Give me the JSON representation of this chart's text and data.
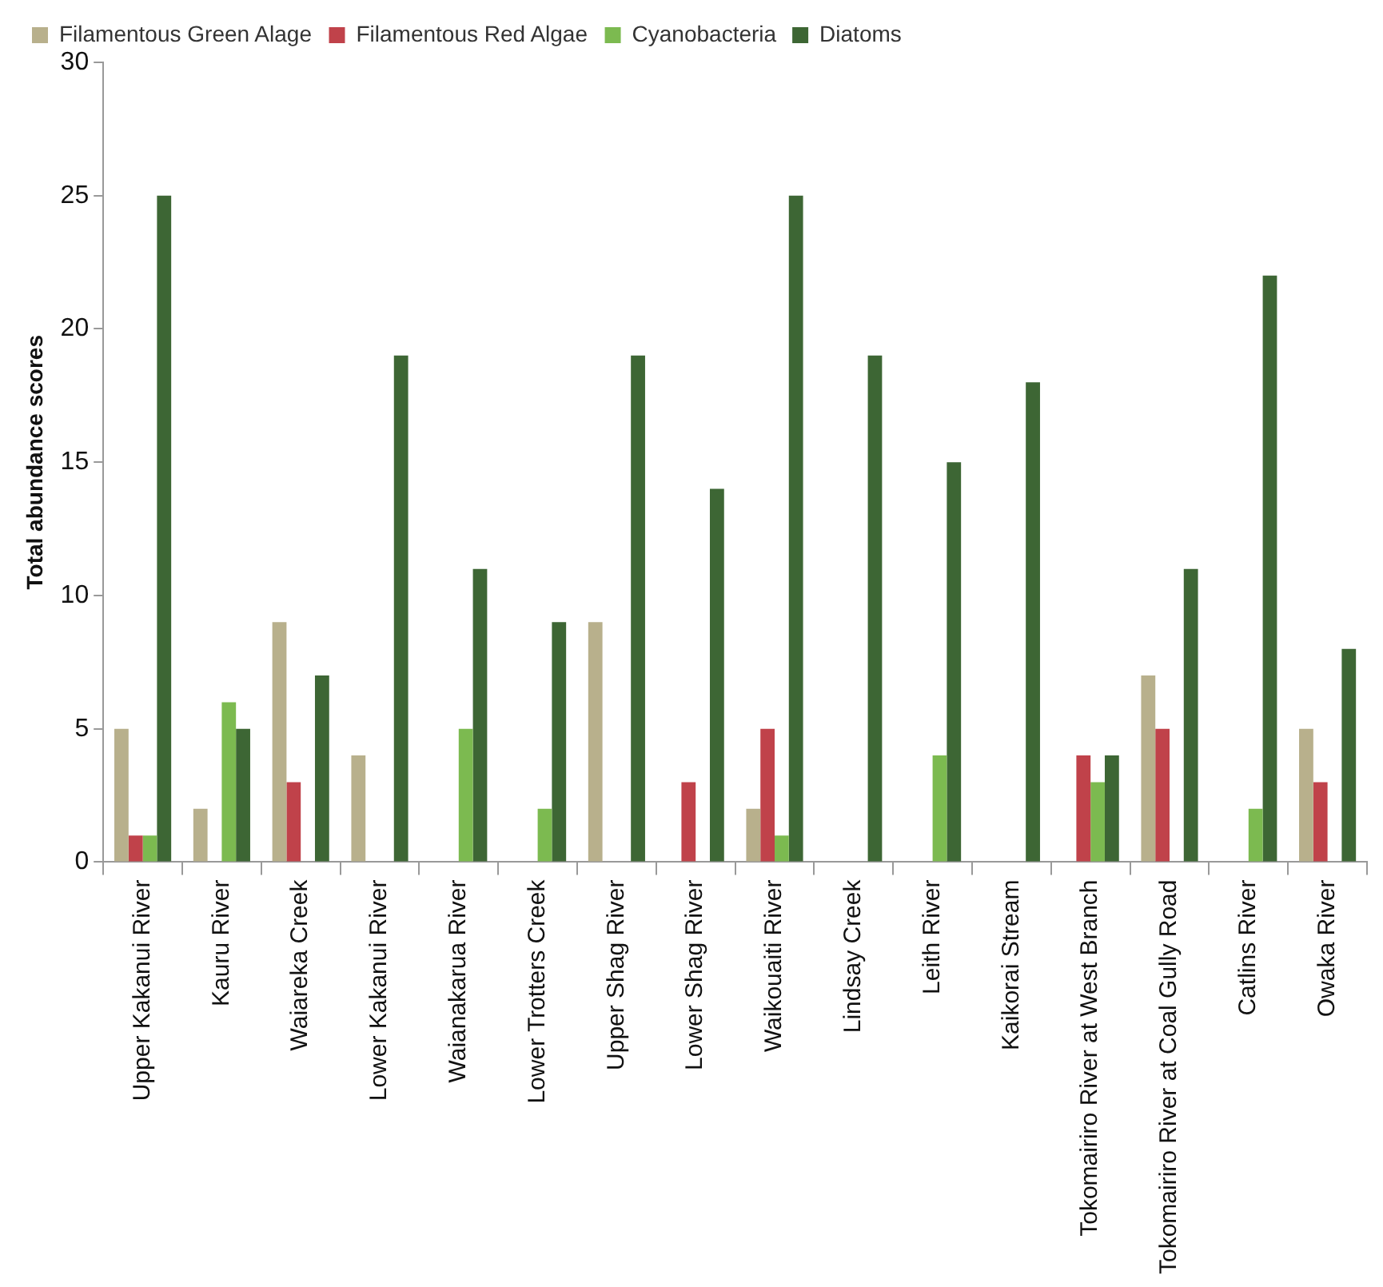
{
  "chart_data": {
    "type": "bar",
    "ylabel": "Total abundance scores",
    "categories": [
      "Upper Kakanui River",
      "Kauru River",
      "Waiareka Creek",
      "Lower Kakanui River",
      "Waianakarua River",
      "Lower Trotters Creek",
      "Upper Shag River",
      "Lower Shag River",
      "Waikouaiti River",
      "Lindsay Creek",
      "Leith River",
      "Kaikorai Stream",
      "Tokomairiro River at West Branch",
      "Tokomairiro River at Coal Gully Road",
      "Catlins River",
      "Owaka River"
    ],
    "series": [
      {
        "name": "Filamentous Green Alage",
        "color": "#b8b08c",
        "values": [
          5,
          2,
          9,
          4,
          0,
          0,
          9,
          0,
          2,
          0,
          0,
          0,
          0,
          7,
          0,
          5
        ]
      },
      {
        "name": "Filamentous Red Algae",
        "color": "#c0424a",
        "values": [
          1,
          0,
          3,
          0,
          0,
          0,
          0,
          3,
          5,
          0,
          0,
          0,
          4,
          5,
          0,
          3
        ]
      },
      {
        "name": "Cyanobacteria",
        "color": "#7cba50",
        "values": [
          1,
          6,
          0,
          0,
          5,
          2,
          0,
          0,
          1,
          0,
          4,
          0,
          3,
          0,
          2,
          0
        ]
      },
      {
        "name": "Diatoms",
        "color": "#3d6634",
        "values": [
          25,
          5,
          7,
          19,
          11,
          9,
          19,
          14,
          25,
          19,
          15,
          18,
          4,
          11,
          22,
          8
        ]
      }
    ],
    "ylim": [
      0,
      30
    ],
    "yticks": [
      0,
      5,
      10,
      15,
      20,
      25,
      30
    ],
    "grid": false,
    "legend": "top"
  }
}
